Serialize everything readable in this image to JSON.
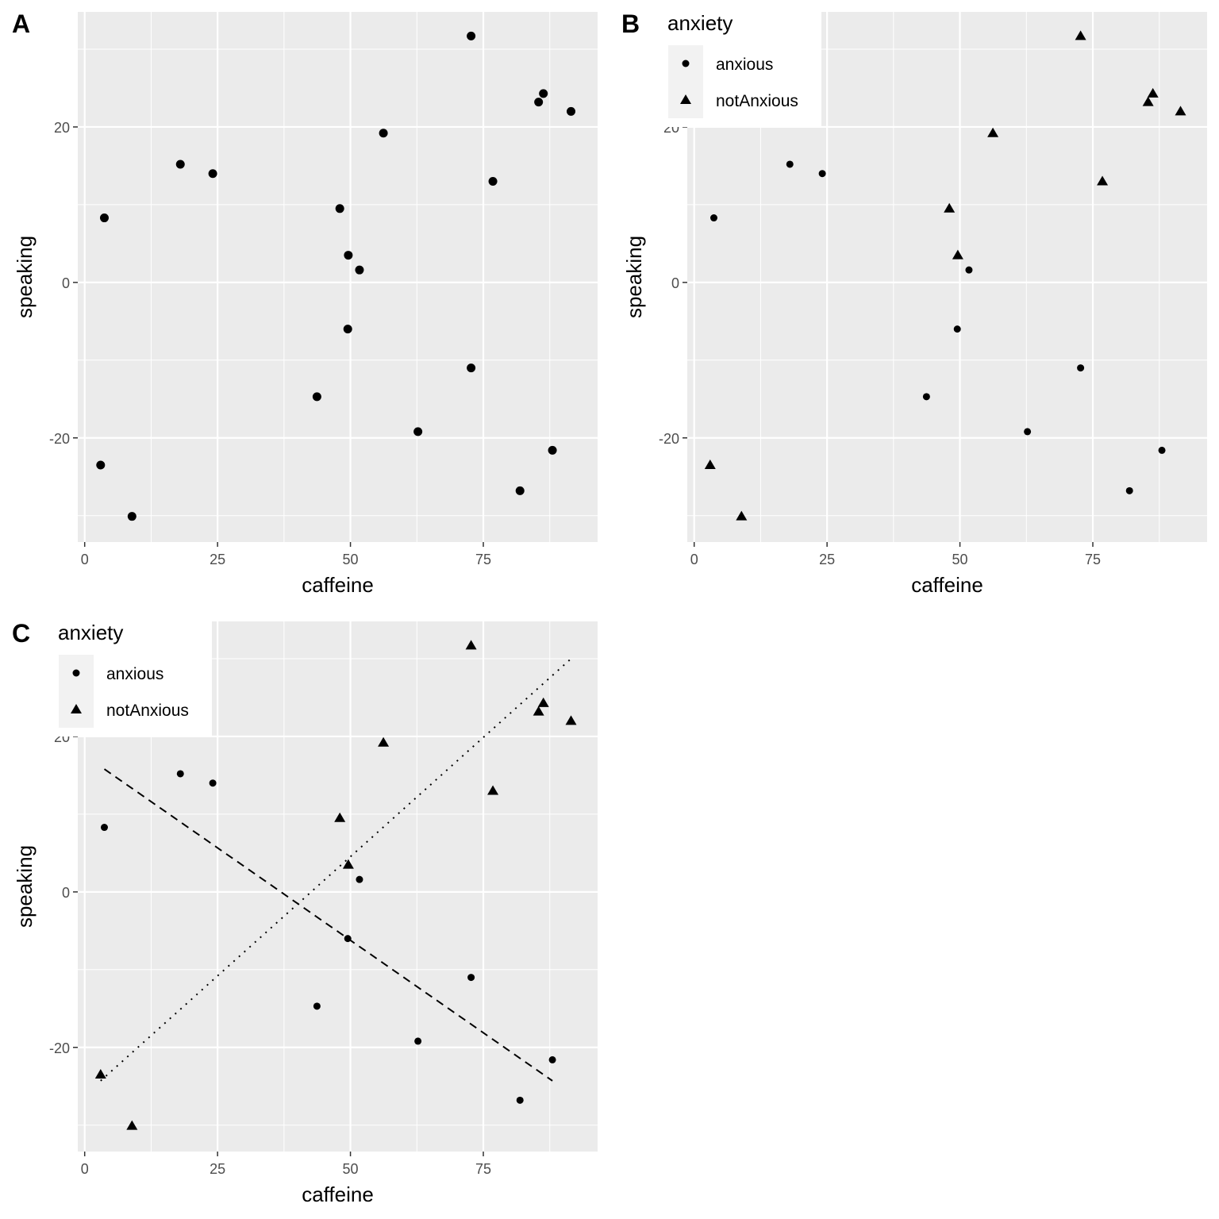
{
  "chart_data": [
    {
      "type": "scatter",
      "panel_label": "A",
      "xlabel": "caffeine",
      "ylabel": "speaking",
      "xlim": [
        -1.3,
        96.5
      ],
      "ylim": [
        -33.4,
        34.8
      ],
      "xticks": [
        0,
        25,
        50,
        75
      ],
      "xtick_labels": [
        "0",
        "25",
        "50",
        "75"
      ],
      "yticks": [
        -20,
        0,
        20
      ],
      "ytick_labels": [
        "-20",
        "0",
        "20"
      ],
      "grid": true,
      "legend": null,
      "shape_by_group": false,
      "fitted_lines": false
    },
    {
      "type": "scatter",
      "panel_label": "B",
      "xlabel": "caffeine",
      "ylabel": "speaking",
      "xlim": [
        -1.3,
        96.5
      ],
      "ylim": [
        -33.4,
        34.8
      ],
      "xticks": [
        0,
        25,
        50,
        75
      ],
      "xtick_labels": [
        "0",
        "25",
        "50",
        "75"
      ],
      "yticks": [
        -20,
        0,
        20
      ],
      "ytick_labels": [
        "-20",
        "0",
        "20"
      ],
      "grid": true,
      "legend": {
        "title": "anxiety",
        "placement": "top-left",
        "entries": [
          "anxious",
          "notAnxious"
        ]
      },
      "shape_by_group": true,
      "fitted_lines": false
    },
    {
      "type": "scatter",
      "panel_label": "C",
      "xlabel": "caffeine",
      "ylabel": "speaking",
      "xlim": [
        -1.3,
        96.5
      ],
      "ylim": [
        -33.4,
        34.8
      ],
      "xticks": [
        0,
        25,
        50,
        75
      ],
      "xtick_labels": [
        "0",
        "25",
        "50",
        "75"
      ],
      "yticks": [
        -20,
        0,
        20
      ],
      "ytick_labels": [
        "-20",
        "0",
        "20"
      ],
      "grid": true,
      "legend": {
        "title": "anxiety",
        "placement": "top-left",
        "entries": [
          "anxious",
          "notAnxious"
        ]
      },
      "shape_by_group": true,
      "fitted_lines": true
    }
  ],
  "points": [
    {
      "caffeine": 72.7,
      "speaking": 31.7,
      "anxiety": "notAnxious"
    },
    {
      "caffeine": 86.3,
      "speaking": 24.3,
      "anxiety": "notAnxious"
    },
    {
      "caffeine": 85.4,
      "speaking": 23.2,
      "anxiety": "notAnxious"
    },
    {
      "caffeine": 91.5,
      "speaking": 22.0,
      "anxiety": "notAnxious"
    },
    {
      "caffeine": 56.2,
      "speaking": 19.2,
      "anxiety": "notAnxious"
    },
    {
      "caffeine": 76.8,
      "speaking": 13.0,
      "anxiety": "notAnxious"
    },
    {
      "caffeine": 48.0,
      "speaking": 9.5,
      "anxiety": "notAnxious"
    },
    {
      "caffeine": 49.6,
      "speaking": 3.5,
      "anxiety": "notAnxious"
    },
    {
      "caffeine": 3.0,
      "speaking": -23.5,
      "anxiety": "notAnxious"
    },
    {
      "caffeine": 8.9,
      "speaking": -30.1,
      "anxiety": "notAnxious"
    },
    {
      "caffeine": 18.0,
      "speaking": 15.2,
      "anxiety": "anxious"
    },
    {
      "caffeine": 24.1,
      "speaking": 14.0,
      "anxiety": "anxious"
    },
    {
      "caffeine": 3.7,
      "speaking": 8.3,
      "anxiety": "anxious"
    },
    {
      "caffeine": 51.7,
      "speaking": 1.6,
      "anxiety": "anxious"
    },
    {
      "caffeine": 49.5,
      "speaking": -6.0,
      "anxiety": "anxious"
    },
    {
      "caffeine": 72.7,
      "speaking": -11.0,
      "anxiety": "anxious"
    },
    {
      "caffeine": 43.7,
      "speaking": -14.7,
      "anxiety": "anxious"
    },
    {
      "caffeine": 62.7,
      "speaking": -19.2,
      "anxiety": "anxious"
    },
    {
      "caffeine": 88.0,
      "speaking": -21.6,
      "anxiety": "anxious"
    },
    {
      "caffeine": 81.9,
      "speaking": -26.8,
      "anxiety": "anxious"
    }
  ],
  "fit_lines": [
    {
      "group": "anxious",
      "style": "dashed",
      "x": [
        3.7,
        88.0
      ],
      "y": [
        15.8,
        -24.3
      ]
    },
    {
      "group": "notAnxious",
      "style": "dotted",
      "x": [
        3.0,
        91.5
      ],
      "y": [
        -24.3,
        30.0
      ]
    }
  ],
  "colors": {
    "panel_bg": "#ebebeb",
    "grid": "#ffffff",
    "point": "#000000",
    "tick_text": "#4d4d4d"
  }
}
